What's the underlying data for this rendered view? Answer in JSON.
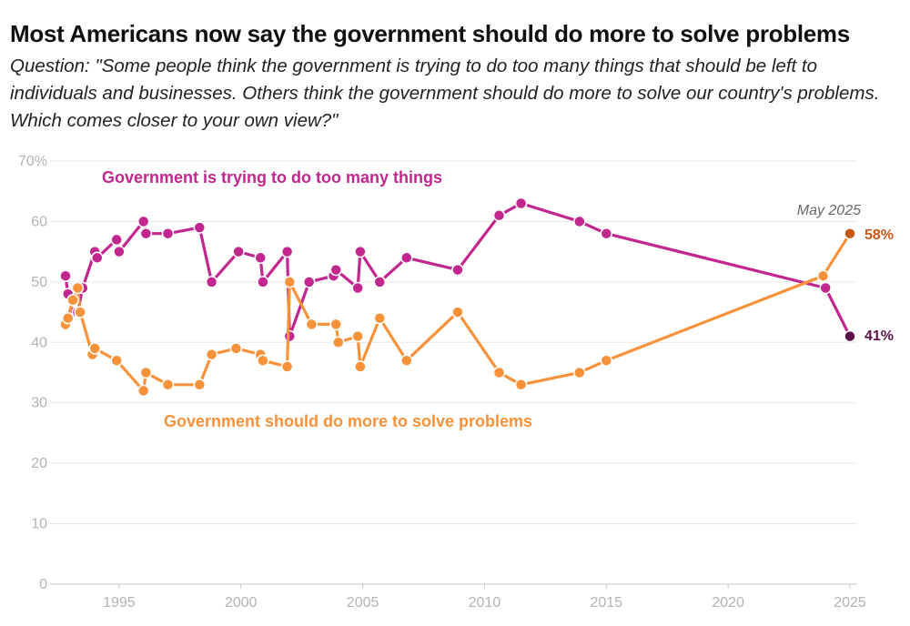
{
  "chart_data": {
    "type": "line",
    "title": "Most Americans now say the government should do more to solve problems",
    "subtitle": "Question: \"Some people think the government is trying to do too many things that should be left to individuals and businesses. Others think the government should do more to solve our country's problems. Which comes closer to your own view?\"",
    "xlim": [
      1992.5,
      2025.3
    ],
    "ylim": [
      0,
      70
    ],
    "x_ticks": [
      1995,
      2000,
      2005,
      2010,
      2015,
      2020,
      2025
    ],
    "y_ticks": [
      0,
      10,
      20,
      30,
      40,
      50,
      60,
      70
    ],
    "y_tick_labels": [
      "0",
      "10",
      "20",
      "30",
      "40",
      "50",
      "60",
      "70%"
    ],
    "grid": true,
    "annotation": "May 2025",
    "series": [
      {
        "name": "Government is trying to do too many things",
        "color": "#c2268f",
        "end_color": "#5e1047",
        "end_label": "41%",
        "points": [
          [
            1992.8,
            51
          ],
          [
            1992.9,
            48
          ],
          [
            1993.1,
            45
          ],
          [
            1993.3,
            45
          ],
          [
            1993.5,
            49
          ],
          [
            1994.0,
            55
          ],
          [
            1994.1,
            54
          ],
          [
            1994.9,
            57
          ],
          [
            1995.0,
            55
          ],
          [
            1996.0,
            60
          ],
          [
            1996.1,
            58
          ],
          [
            1997.0,
            58
          ],
          [
            1998.3,
            59
          ],
          [
            1998.8,
            50
          ],
          [
            1999.9,
            55
          ],
          [
            2000.8,
            54
          ],
          [
            2000.9,
            50
          ],
          [
            2001.9,
            55
          ],
          [
            2002.0,
            41
          ],
          [
            2002.8,
            50
          ],
          [
            2003.8,
            51
          ],
          [
            2003.9,
            52
          ],
          [
            2004.8,
            49
          ],
          [
            2004.9,
            55
          ],
          [
            2005.7,
            50
          ],
          [
            2006.8,
            54
          ],
          [
            2008.9,
            52
          ],
          [
            2010.6,
            61
          ],
          [
            2011.5,
            63
          ],
          [
            2013.9,
            60
          ],
          [
            2015.0,
            58
          ],
          [
            2024.0,
            49
          ],
          [
            2025.0,
            41
          ]
        ]
      },
      {
        "name": "Government should do more to solve problems",
        "color": "#f7923a",
        "end_color": "#c8571a",
        "end_label": "58%",
        "points": [
          [
            1992.8,
            43
          ],
          [
            1992.9,
            44
          ],
          [
            1993.1,
            47
          ],
          [
            1993.3,
            49
          ],
          [
            1993.4,
            45
          ],
          [
            1993.9,
            38
          ],
          [
            1994.0,
            39
          ],
          [
            1994.9,
            37
          ],
          [
            1996.0,
            32
          ],
          [
            1996.1,
            35
          ],
          [
            1997.0,
            33
          ],
          [
            1998.3,
            33
          ],
          [
            1998.8,
            38
          ],
          [
            1999.8,
            39
          ],
          [
            2000.8,
            38
          ],
          [
            2000.9,
            37
          ],
          [
            2001.9,
            36
          ],
          [
            2002.0,
            50
          ],
          [
            2002.9,
            43
          ],
          [
            2003.9,
            43
          ],
          [
            2004.0,
            40
          ],
          [
            2004.8,
            41
          ],
          [
            2004.9,
            36
          ],
          [
            2005.7,
            44
          ],
          [
            2006.8,
            37
          ],
          [
            2008.9,
            45
          ],
          [
            2010.6,
            35
          ],
          [
            2011.5,
            33
          ],
          [
            2013.9,
            35
          ],
          [
            2015.0,
            37
          ],
          [
            2023.9,
            51
          ],
          [
            2025.0,
            58
          ]
        ]
      }
    ]
  }
}
